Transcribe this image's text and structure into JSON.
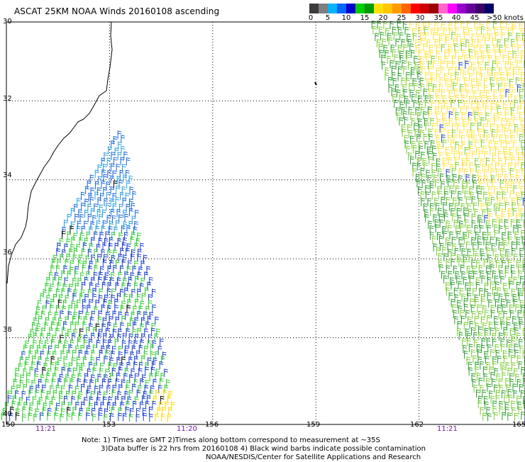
{
  "title": "ASCAT 25KM NOAA Winds 20160108 ascending",
  "colorbar": {
    "colors": [
      "#3c3c3c",
      "#7f7f7f",
      "#00b4ff",
      "#0066ff",
      "#0000cc",
      "#00cc00",
      "#009900",
      "#ffe000",
      "#ffc800",
      "#ff9900",
      "#ff6600",
      "#ff0000",
      "#cc0000",
      "#990000",
      "#ff66cc",
      "#ff00ff",
      "#9900cc",
      "#660099",
      "#3d0066",
      "#000066"
    ],
    "labels": [
      "0",
      "5",
      "10",
      "15",
      "20",
      "25",
      "30",
      "35",
      "40",
      "45",
      ">50 knots"
    ]
  },
  "lat_labels": [
    "30",
    "32",
    "34",
    "36",
    "38",
    "40"
  ],
  "lon_labels": [
    "150",
    "153",
    "156",
    "159",
    "162",
    "165"
  ],
  "time_labels": [
    "11:21",
    "11:20",
    "11:21"
  ],
  "notes": {
    "line1": "Note: 1) Times are GMT 2)Times along bottom correspond to measurement at ~35S",
    "line2": "3)Data buffer is 22 hrs from 20160108 4) Black wind barbs indicate possible contamination",
    "line3": "NOAA/NESDIS/Center for Satellite Applications and Research"
  }
}
